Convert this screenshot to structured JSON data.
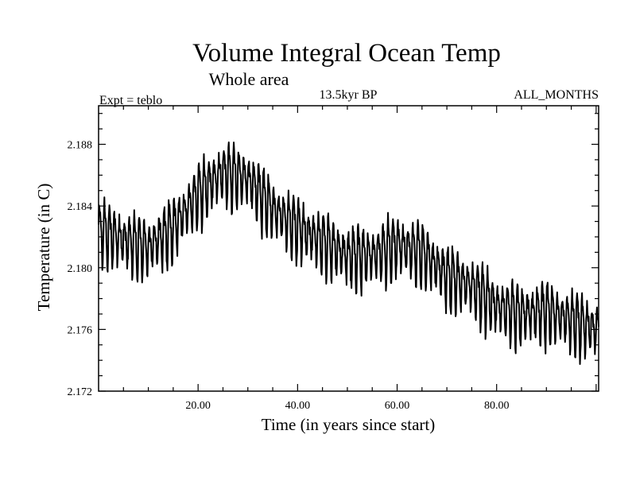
{
  "chart_data": {
    "type": "line",
    "title": "Volume Integral Ocean Temp",
    "subtitle": "Whole area",
    "experiment_label": "Expt = teblo",
    "period_label": "13.5kyr BP",
    "months_label": "ALL_MONTHS",
    "xlabel": "Time (in years since start)",
    "ylabel": "Temperature (in C)",
    "xlim": [
      0,
      100.5
    ],
    "ylim": [
      2.172,
      2.1905
    ],
    "x_ticks": [
      20,
      40,
      60,
      80
    ],
    "x_tick_labels": [
      "20.00",
      "40.00",
      "60.00",
      "80.00"
    ],
    "y_ticks": [
      2.172,
      2.176,
      2.18,
      2.184,
      2.188
    ],
    "y_tick_labels": [
      "2.172",
      "2.176",
      "2.180",
      "2.184",
      "2.188"
    ],
    "series": [
      {
        "name": "Volume integral ocean temperature",
        "color": "#000000",
        "samples_per_year": 12,
        "description": "Monthly values with a strong annual cycle",
        "annual_mean_years": [
          0,
          5,
          10,
          15,
          20,
          25,
          30,
          35,
          40,
          45,
          50,
          55,
          60,
          65,
          70,
          75,
          80,
          85,
          90,
          95,
          100
        ],
        "annual_mean_values": [
          2.1825,
          2.1818,
          2.1813,
          2.1826,
          2.1848,
          2.1862,
          2.1858,
          2.1838,
          2.1826,
          2.1817,
          2.1808,
          2.1808,
          2.1815,
          2.181,
          2.1795,
          2.1788,
          2.1775,
          2.177,
          2.1772,
          2.1766,
          2.176
        ],
        "seasonal_amplitude": 0.0018
      }
    ]
  }
}
